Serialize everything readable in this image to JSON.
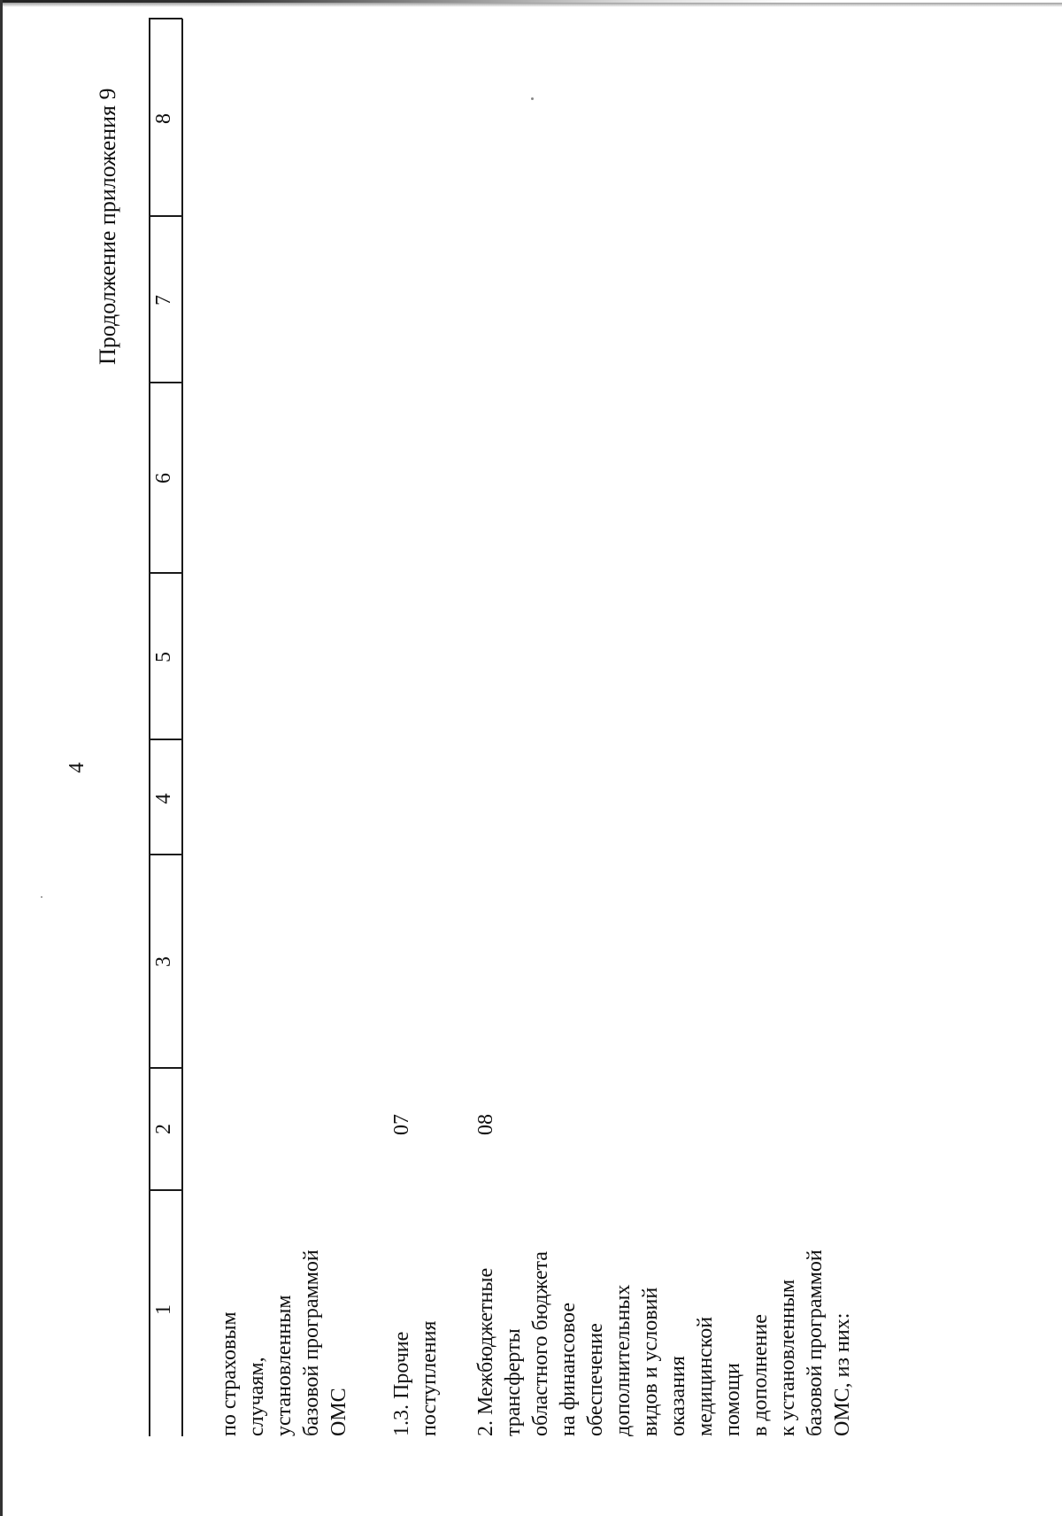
{
  "page_number": "4",
  "continuation_label": "Продолжение приложения 9",
  "column_numbers": [
    "1",
    "2",
    "3",
    "4",
    "5",
    "6",
    "7",
    "8"
  ],
  "rows": [
    {
      "label": "по страховым\nслучаям,\nустановленным\nбазовой программой\nОМС",
      "code": ""
    },
    {
      "label": "1.3. Прочие\nпоступления",
      "code": "07"
    },
    {
      "label": "2. Межбюджетные\nтрансферты\nобластного бюджета\nна финансовое\nобеспечение\nдополнительных\nвидов и условий\nоказания\nмедицинской\nпомощи\nв дополнение\nк установленным\nбазовой программой\nОМС, из них:",
      "code": "08"
    }
  ]
}
